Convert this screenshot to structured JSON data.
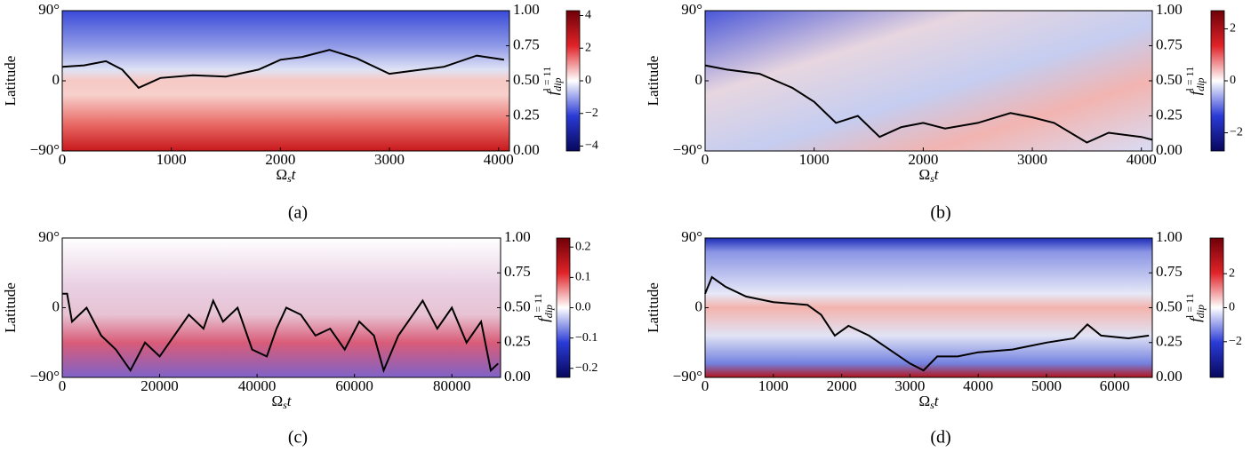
{
  "cmap": [
    "#07075c",
    "#2a3bd6",
    "#ffffff",
    "#e02328",
    "#6e0008"
  ],
  "chart_data": [
    {
      "type": "line",
      "panel_label": "(a)",
      "ylabel": "Latitude",
      "xlabel": "Ω",
      "xlabel_sub": "s",
      "xlabel_tail": "t",
      "y2label": "f",
      "y2label_sub": "dip",
      "y2label_sup": "l = 11",
      "xlim": [
        0,
        4100
      ],
      "xticks": [
        0,
        1000,
        2000,
        3000,
        4000
      ],
      "ylim": [
        -90,
        90
      ],
      "yticks": [
        {
          "value": -90,
          "label": "−90°"
        },
        0,
        {
          "value": 90,
          "label": "90°"
        }
      ],
      "y2lim": [
        0,
        1
      ],
      "y2ticks": [
        {
          "value": 0,
          "label": "0.00"
        },
        {
          "value": 0.25,
          "label": "0.25"
        },
        {
          "value": 0.5,
          "label": "0.50"
        },
        {
          "value": 0.75,
          "label": "0.75"
        },
        {
          "value": 1,
          "label": "1.00"
        }
      ],
      "clim": [
        -4.3,
        4.3
      ],
      "cticks": [
        {
          "value": -4,
          "label": "−4"
        },
        {
          "value": -2,
          "label": "−2"
        },
        0,
        2,
        4
      ],
      "color": "#000000",
      "axis": "y2",
      "x": [
        0,
        200,
        400,
        550,
        700,
        900,
        1200,
        1500,
        1800,
        2000,
        2200,
        2450,
        2700,
        3000,
        3200,
        3500,
        3800,
        4050
      ],
      "values": [
        0.6,
        0.61,
        0.64,
        0.58,
        0.45,
        0.52,
        0.54,
        0.53,
        0.58,
        0.65,
        0.67,
        0.72,
        0.66,
        0.55,
        0.57,
        0.6,
        0.68,
        0.65
      ]
    },
    {
      "type": "line",
      "panel_label": "(b)",
      "ylabel": "Latitude",
      "xlabel": "Ω",
      "xlabel_sub": "s",
      "xlabel_tail": "t",
      "y2label": "f",
      "y2label_sub": "dip",
      "y2label_sup": "l = 11",
      "xlim": [
        0,
        4100
      ],
      "xticks": [
        0,
        1000,
        2000,
        3000,
        4000
      ],
      "ylim": [
        -90,
        90
      ],
      "yticks": [
        {
          "value": -90,
          "label": "−90°"
        },
        0,
        {
          "value": 90,
          "label": "90°"
        }
      ],
      "y2lim": [
        0,
        1
      ],
      "y2ticks": [
        {
          "value": 0,
          "label": "0.00"
        },
        {
          "value": 0.25,
          "label": "0.25"
        },
        {
          "value": 0.5,
          "label": "0.50"
        },
        {
          "value": 0.75,
          "label": "0.75"
        },
        {
          "value": 1,
          "label": "1.00"
        }
      ],
      "clim": [
        -2.7,
        2.7
      ],
      "cticks": [
        {
          "value": -2,
          "label": "−2"
        },
        0,
        2
      ],
      "color": "#000000",
      "axis": "y2",
      "x": [
        0,
        200,
        500,
        800,
        1000,
        1200,
        1400,
        1600,
        1800,
        2000,
        2200,
        2500,
        2800,
        3000,
        3200,
        3500,
        3700,
        4000,
        4100
      ],
      "values": [
        0.61,
        0.58,
        0.55,
        0.45,
        0.35,
        0.2,
        0.25,
        0.1,
        0.17,
        0.2,
        0.16,
        0.2,
        0.27,
        0.24,
        0.2,
        0.06,
        0.13,
        0.1,
        0.08
      ]
    },
    {
      "type": "line",
      "panel_label": "(c)",
      "ylabel": "Latitude",
      "xlabel": "Ω",
      "xlabel_sub": "s",
      "xlabel_tail": "t",
      "y2label": "f",
      "y2label_sub": "dip",
      "y2label_sup": "l = 11",
      "xlim": [
        0,
        90000
      ],
      "xticks": [
        0,
        20000,
        40000,
        60000,
        80000
      ],
      "ylim": [
        -90,
        90
      ],
      "yticks": [
        {
          "value": -90,
          "label": "−90°"
        },
        0,
        {
          "value": 90,
          "label": "90°"
        }
      ],
      "y2lim": [
        0,
        1
      ],
      "y2ticks": [
        {
          "value": 0,
          "label": "0.00"
        },
        {
          "value": 0.25,
          "label": "0.25"
        },
        {
          "value": 0.5,
          "label": "0.50"
        },
        {
          "value": 0.75,
          "label": "0.75"
        },
        {
          "value": 1,
          "label": "1.00"
        }
      ],
      "clim": [
        -0.23,
        0.23
      ],
      "cticks": [
        {
          "value": -0.2,
          "label": "−0.2"
        },
        {
          "value": -0.1,
          "label": "−0.1"
        },
        {
          "value": 0,
          "label": "0.0"
        },
        0.1,
        0.2
      ],
      "color": "#000000",
      "axis": "y2",
      "x": [
        0,
        1000,
        2000,
        5000,
        8000,
        11000,
        14000,
        17000,
        20000,
        23000,
        26000,
        29000,
        31000,
        33000,
        36000,
        39000,
        42000,
        44000,
        46000,
        49000,
        52000,
        55000,
        58000,
        61000,
        64000,
        66000,
        69000,
        72000,
        74000,
        77000,
        80000,
        83000,
        86000,
        88000,
        89500
      ],
      "values": [
        0.6,
        0.6,
        0.4,
        0.5,
        0.3,
        0.2,
        0.05,
        0.25,
        0.15,
        0.3,
        0.45,
        0.35,
        0.55,
        0.4,
        0.5,
        0.2,
        0.15,
        0.35,
        0.5,
        0.45,
        0.3,
        0.35,
        0.2,
        0.4,
        0.3,
        0.05,
        0.3,
        0.45,
        0.55,
        0.35,
        0.5,
        0.25,
        0.4,
        0.05,
        0.1
      ]
    },
    {
      "type": "line",
      "panel_label": "(d)",
      "ylabel": "Latitude",
      "xlabel": "Ω",
      "xlabel_sub": "s",
      "xlabel_tail": "t",
      "y2label": "f",
      "y2label_sub": "dip",
      "y2label_sup": "l = 11",
      "xlim": [
        0,
        6550
      ],
      "xticks": [
        0,
        1000,
        2000,
        3000,
        4000,
        5000,
        6000
      ],
      "ylim": [
        -90,
        90
      ],
      "yticks": [
        {
          "value": -90,
          "label": "−90°"
        },
        0,
        {
          "value": 90,
          "label": "90°"
        }
      ],
      "y2lim": [
        0,
        1
      ],
      "y2ticks": [
        {
          "value": 0,
          "label": "0.00"
        },
        {
          "value": 0.25,
          "label": "0.25"
        },
        {
          "value": 0.5,
          "label": "0.50"
        },
        {
          "value": 0.75,
          "label": "0.75"
        },
        {
          "value": 1,
          "label": "1.00"
        }
      ],
      "clim": [
        -4.1,
        4.1
      ],
      "cticks": [
        {
          "value": -2,
          "label": "−2"
        },
        0,
        2
      ],
      "color": "#000000",
      "axis": "y2",
      "x": [
        0,
        100,
        300,
        600,
        1000,
        1500,
        1700,
        1900,
        2100,
        2400,
        2700,
        3000,
        3200,
        3400,
        3700,
        4000,
        4500,
        5000,
        5400,
        5600,
        5800,
        6200,
        6500
      ],
      "values": [
        0.6,
        0.72,
        0.65,
        0.58,
        0.54,
        0.52,
        0.45,
        0.3,
        0.37,
        0.3,
        0.2,
        0.1,
        0.05,
        0.15,
        0.15,
        0.18,
        0.2,
        0.25,
        0.28,
        0.38,
        0.3,
        0.28,
        0.3
      ]
    }
  ]
}
